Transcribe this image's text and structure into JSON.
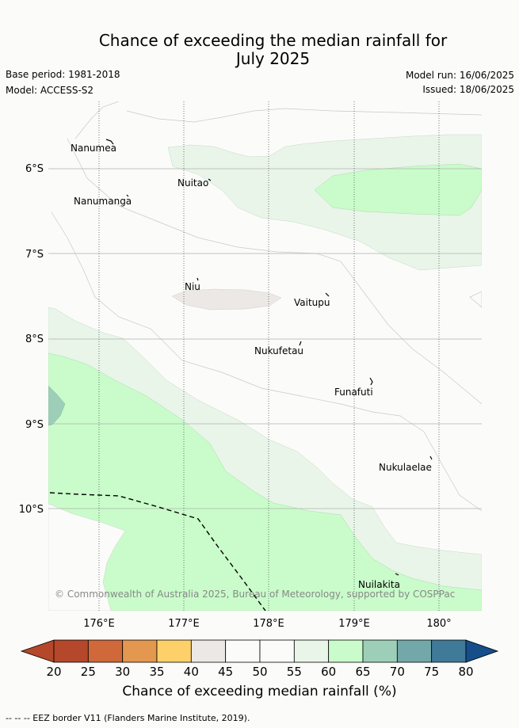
{
  "title_line1": "Chance of exceeding the median rainfall for",
  "title_line2": "July 2025",
  "base_period": "Base period: 1981-2018",
  "model": "Model: ACCESS-S2",
  "model_run": "Model run: 16/06/2025",
  "issued": "Issued: 18/06/2025",
  "copyright": "© Commonwealth of Australia 2025, Bureau of Meteorology, supported by COSPPac",
  "eez_note": "--  --  -- EEZ border V11 (Flanders Marine Institute, 2019).",
  "colorbar": {
    "label": "Chance of exceeding median rainfall (%)",
    "ticks": [
      "20",
      "25",
      "30",
      "35",
      "40",
      "45",
      "50",
      "55",
      "60",
      "65",
      "70",
      "75",
      "80"
    ],
    "colors": [
      "#b5472a",
      "#d0693a",
      "#e3974f",
      "#fdd069",
      "#ece8e6",
      "#fbfcfa",
      "#fbfcfa",
      "#e9f5e9",
      "#c9fcca",
      "#9dcfb8",
      "#72a8a9",
      "#3f7a98",
      "#154e8a"
    ]
  },
  "map": {
    "lat_labels": [
      "6°S",
      "7°S",
      "8°S",
      "9°S",
      "10°S"
    ],
    "lon_labels": [
      "176°E",
      "177°E",
      "178°E",
      "179°E",
      "180°"
    ],
    "places": [
      "Nanumea",
      "Nuitao",
      "Nanumanga",
      "Niu",
      "Vaitupu",
      "Nukufetau",
      "Funafuti",
      "Nukulaelae",
      "Nuilakita"
    ]
  },
  "chart_data": {
    "type": "map",
    "title": "Chance of exceeding the median rainfall for July 2025",
    "xlabel": "",
    "ylabel": "",
    "xlim": [
      175.4,
      180.5
    ],
    "ylim": [
      -11.2,
      -5.2
    ],
    "legend": "bottom",
    "places": [
      {
        "name": "Nanumea",
        "lon": 176.13,
        "lat": -5.67
      },
      {
        "name": "Nuitao",
        "lon": 177.32,
        "lat": -6.13
      },
      {
        "name": "Nanumanga",
        "lon": 176.32,
        "lat": -6.3
      },
      {
        "name": "Niu",
        "lon": 177.17,
        "lat": -7.28
      },
      {
        "name": "Vaitupu",
        "lon": 178.68,
        "lat": -7.48
      },
      {
        "name": "Nukufetau",
        "lon": 178.38,
        "lat": -8.03
      },
      {
        "name": "Funafuti",
        "lon": 179.2,
        "lat": -8.52
      },
      {
        "name": "Nukulaelae",
        "lon": 179.83,
        "lat": -9.38
      },
      {
        "name": "Nuilakita",
        "lon": 179.52,
        "lat": -10.73
      }
    ]
  }
}
